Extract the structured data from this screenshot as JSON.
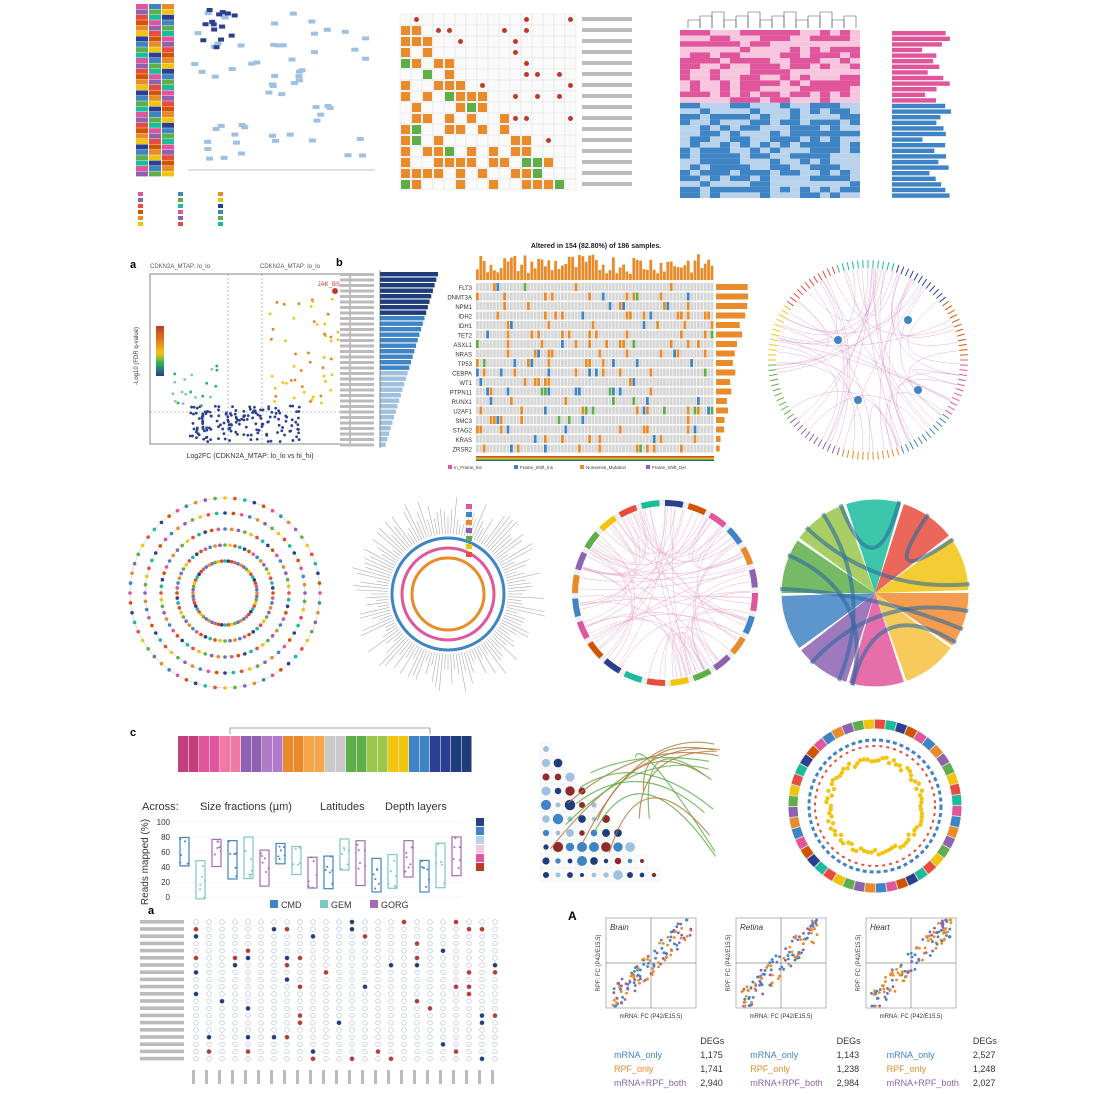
{
  "colors": {
    "pink": "#e0559c",
    "blue": "#3f84c4",
    "orange": "#e98b2a",
    "purple": "#8d62b1",
    "green": "#5fae4a",
    "navy": "#1f3d7a",
    "teal": "#7ec8c2",
    "violet": "#a46bb8"
  },
  "panel_a3": {
    "letter": "a",
    "top_left_label": "CDKN2A_MTAP: lo_lo",
    "top_right_label": "CDKN2A_MTAP: lo_lo",
    "xlabel": "Log2FC (CDKN2A_MTAP: lo_lo vs hi_hi)",
    "ylabel": "-Log10 (FDR q-value)",
    "highlight": "JAK_BS"
  },
  "panel_mut": {
    "letter": "b",
    "title": "Altered in 154 (82.80%) of 186 samples.",
    "genes": [
      "FLT3",
      "DNMT3A",
      "NPM1",
      "IDH2",
      "IDH1",
      "TET2",
      "ASXL1",
      "NRAS",
      "TP53",
      "CEBPA",
      "WT1",
      "PTPN11",
      "RUNX1",
      "U2AF1",
      "SMC3",
      "STAG2",
      "KRAS",
      "ZRSR2"
    ],
    "legend_title_1": "RNB_classification",
    "legend_title_2": "Overall_Survival_Status",
    "legend_items": [
      "In_Frame_Ins",
      "Frame_Shift_Ins",
      "Nonsense_Mutation",
      "Frame_Shift_Del",
      "Splice_Site",
      "Multi_Hit",
      "In_Frame_Del"
    ]
  },
  "panel_c": {
    "letter": "c",
    "row_label": "Across:",
    "groups": [
      "Size fractions (µm)",
      "Latitudes",
      "Depth layers"
    ],
    "ylabel": "Reads mapped (%)",
    "yticks": [
      "100",
      "80",
      "60",
      "40",
      "20",
      "0"
    ],
    "legend": [
      "CMD",
      "GEM",
      "GORG"
    ],
    "group_colors": [
      "#3f84c4",
      "#7ec8c2",
      "#a46bb8"
    ]
  },
  "panel_A": {
    "letter": "A",
    "tissues": [
      "Brain",
      "Retina",
      "Heart"
    ],
    "ylabel": "RPF: FC (P42/E15.5)",
    "xlabel": "mRNA: FC (P42/E15.5)",
    "table_header": "DEGs",
    "row_labels": [
      "mRNA_only",
      "RPF_only",
      "mRNA+RPF_both"
    ],
    "counts": [
      [
        "1,175",
        "1,741",
        "2,940"
      ],
      [
        "1,143",
        "1,238",
        "2,984"
      ],
      [
        "2,527",
        "1,248",
        "2,027"
      ]
    ]
  }
}
